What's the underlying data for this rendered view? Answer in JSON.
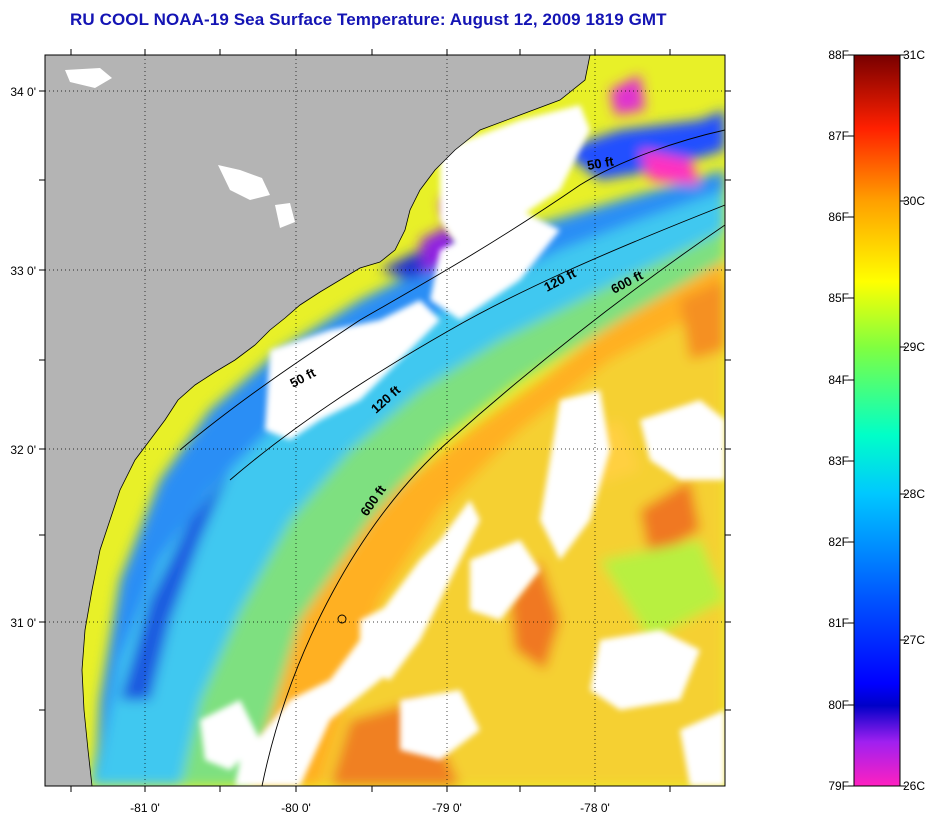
{
  "title": "RU COOL  NOAA-19  Sea Surface Temperature:  August 12, 2009 1819 GMT",
  "map": {
    "lat_labels": [
      "34 0'",
      "33 0'",
      "32 0'",
      "31 0'"
    ],
    "lon_labels": [
      "-81 0'",
      "-80 0'",
      "-79 0'",
      "-78 0'"
    ],
    "contours": [
      "50 ft",
      "120 ft",
      "600 ft",
      "50 ft",
      "120 ft",
      "600 ft"
    ],
    "colors": {
      "land": "#b4b4b4",
      "cloud": "#ffffff",
      "grid": "#000000"
    }
  },
  "colorbar": {
    "f_labels": [
      "88F",
      "87F",
      "86F",
      "85F",
      "84F",
      "83F",
      "82F",
      "81F",
      "80F",
      "79F"
    ],
    "c_labels": [
      "31C",
      "30C",
      "29C",
      "28C",
      "27C",
      "26C"
    ],
    "gradient": [
      "#ff20c0",
      "#8020ff",
      "#0000e0",
      "#0050ff",
      "#00c8ff",
      "#00ffc8",
      "#80ff40",
      "#ffff00",
      "#ffa000",
      "#ff3000",
      "#d00000",
      "#7a0000"
    ]
  }
}
